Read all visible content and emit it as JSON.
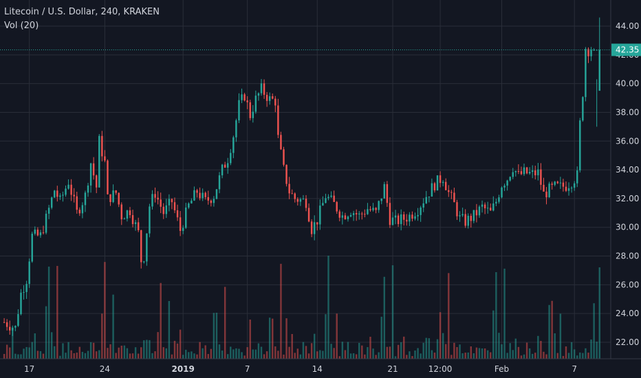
{
  "header": {
    "symbol_title": "Litecoin / U.S. Dollar, 240, KRAKEN",
    "volume_label": "Vol (20)"
  },
  "colors": {
    "background": "#131722",
    "grid": "#2a2e39",
    "up": "#26a69a",
    "down": "#ef5350",
    "text": "#d1d4dc",
    "price_line": "#26a69a"
  },
  "chart_data": {
    "type": "candlestick",
    "instrument": "Litecoin / U.S. Dollar",
    "interval": "240",
    "exchange": "KRAKEN",
    "last_price": "42.35",
    "y_ticks": [
      "44.00",
      "42.00",
      "40.00",
      "38.00",
      "36.00",
      "34.00",
      "32.00",
      "30.00",
      "28.00",
      "26.00",
      "24.00",
      "22.00"
    ],
    "y_tick_values": [
      44,
      42,
      40,
      38,
      36,
      34,
      32,
      30,
      28,
      26,
      24,
      22
    ],
    "ylim": [
      20.8,
      45.4
    ],
    "x_ticks": [
      "17",
      "24",
      "2019",
      "7",
      "14",
      "21",
      "12:00",
      "Feb",
      "7"
    ],
    "x_tick_bars": [
      9,
      36,
      64,
      87,
      112,
      139,
      156,
      178,
      204
    ],
    "total_bars": 214,
    "x_range_bars": [
      -1.5,
      217
    ],
    "close_path": [
      [
        0,
        23.4
      ],
      [
        4,
        23.0
      ],
      [
        6,
        25.4
      ],
      [
        8,
        26.4
      ],
      [
        10,
        29.4
      ],
      [
        13,
        29.4
      ],
      [
        15,
        30.6
      ],
      [
        18,
        32.6
      ],
      [
        20,
        31.8
      ],
      [
        23,
        33.2
      ],
      [
        26,
        31.0
      ],
      [
        29,
        32.2
      ],
      [
        31,
        34.5
      ],
      [
        33,
        32.8
      ],
      [
        34,
        36.0
      ],
      [
        36,
        34.5
      ],
      [
        37,
        32.0
      ],
      [
        40,
        32.4
      ],
      [
        42,
        30.8
      ],
      [
        45,
        31.2
      ],
      [
        48,
        29.6
      ],
      [
        49,
        27.7
      ],
      [
        50,
        28.0
      ],
      [
        52,
        31.5
      ],
      [
        54,
        32.4
      ],
      [
        57,
        31.0
      ],
      [
        60,
        31.8
      ],
      [
        63,
        29.8
      ],
      [
        66,
        31.5
      ],
      [
        69,
        32.5
      ],
      [
        72,
        31.8
      ],
      [
        75,
        32.2
      ],
      [
        78,
        34.0
      ],
      [
        80,
        34.8
      ],
      [
        82,
        36.4
      ],
      [
        84,
        38.5
      ],
      [
        86,
        39.2
      ],
      [
        88,
        37.8
      ],
      [
        90,
        38.9
      ],
      [
        92,
        39.6
      ],
      [
        95,
        38.9
      ],
      [
        97,
        38.8
      ],
      [
        98,
        36.2
      ],
      [
        100,
        34.0
      ],
      [
        102,
        32.5
      ],
      [
        104,
        32.0
      ],
      [
        108,
        31.8
      ],
      [
        110,
        29.9
      ],
      [
        112,
        30.5
      ],
      [
        115,
        32.2
      ],
      [
        118,
        31.6
      ],
      [
        121,
        30.8
      ],
      [
        124,
        31.2
      ],
      [
        127,
        30.8
      ],
      [
        130,
        31.3
      ],
      [
        133,
        31.0
      ],
      [
        136,
        32.8
      ],
      [
        138,
        30.6
      ],
      [
        140,
        30.4
      ],
      [
        143,
        30.6
      ],
      [
        145,
        30.8
      ],
      [
        148,
        31.3
      ],
      [
        151,
        32.2
      ],
      [
        154,
        33.0
      ],
      [
        157,
        33.5
      ],
      [
        159,
        32.4
      ],
      [
        161,
        31.6
      ],
      [
        163,
        30.6
      ],
      [
        165,
        30.4
      ],
      [
        168,
        30.8
      ],
      [
        171,
        31.4
      ],
      [
        174,
        31.0
      ],
      [
        176,
        31.8
      ],
      [
        178,
        33.0
      ],
      [
        180,
        33.4
      ],
      [
        182,
        34.2
      ],
      [
        184,
        33.6
      ],
      [
        186,
        33.8
      ],
      [
        189,
        33.7
      ],
      [
        191,
        33.8
      ],
      [
        193,
        32.3
      ],
      [
        195,
        32.6
      ],
      [
        197,
        32.8
      ],
      [
        199,
        32.8
      ],
      [
        201,
        32.9
      ],
      [
        203,
        33.2
      ],
      [
        205,
        33.6
      ],
      [
        206,
        37.2
      ],
      [
        207,
        39.4
      ],
      [
        208,
        42.5
      ],
      [
        209,
        42.35
      ]
    ],
    "volume_sample": [
      0.8,
      2.2,
      2.2,
      3.6,
      1.4,
      1.2,
      0.8,
      2.0,
      1.6,
      1.6,
      2.3,
      3.8,
      2.5,
      1.1,
      1.2,
      6.5,
      14.5,
      3.2,
      1.9,
      11.5
    ]
  }
}
